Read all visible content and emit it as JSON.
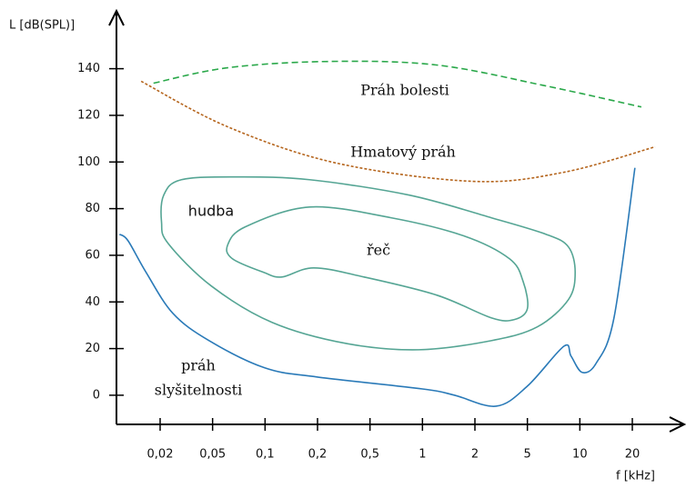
{
  "chart_data": {
    "type": "line",
    "xlabel": "f [kHz]",
    "ylabel": "L [dB(SPL)]",
    "xlim": [
      0.01,
      40
    ],
    "xticks": [
      {
        "value": 0.02,
        "label": "0,02"
      },
      {
        "value": 0.05,
        "label": "0,05"
      },
      {
        "value": 0.1,
        "label": "0,1"
      },
      {
        "value": 0.2,
        "label": "0,2"
      },
      {
        "value": 0.5,
        "label": "0,5"
      },
      1,
      2,
      5,
      10,
      20
    ],
    "ylim": [
      -12.5,
      164
    ],
    "yticks": [
      0,
      20,
      40,
      60,
      80,
      100,
      120,
      140
    ],
    "series": [
      {
        "color": "#2a7ab8",
        "dash": "solid",
        "x": [
          0.0105,
          0.012,
          0.016,
          0.025,
          0.047,
          0.1,
          0.2,
          1,
          1.53,
          2.9,
          5,
          8.1,
          8.9,
          10.3,
          12.4,
          15.7,
          20.9
        ],
        "values": [
          69,
          66.3,
          52.7,
          35.1,
          23.4,
          11.7,
          7.8,
          2.7,
          0,
          -4.7,
          3.9,
          21,
          16.8,
          9.8,
          13.7,
          33.2,
          97.5
        ]
      },
      {
        "color": "#2aa84a",
        "dash": "dashed",
        "x": [
          0.018,
          0.061,
          0.24,
          1.2,
          6.4,
          23.3
        ],
        "values": [
          133.8,
          140.4,
          143.1,
          141.6,
          132.6,
          123.6
        ]
      },
      {
        "color": "#b5651d",
        "dash": "dotted",
        "x": [
          0.0148,
          0.061,
          0.28,
          1.95,
          8.1,
          29.4
        ],
        "values": [
          134.6,
          115.1,
          99.5,
          91.7,
          95.6,
          106.5
        ]
      },
      {
        "color": "#55a594",
        "dash": "solid",
        "x": [
          0.0205,
          0.0213,
          0.029,
          0.069,
          0.18,
          0.84,
          2.66,
          6.4,
          8.6,
          9.4,
          8.6,
          5.7,
          2.66,
          0.95,
          0.33,
          0.11,
          0.049,
          0.023,
          0.0205
        ],
        "values": [
          74.1,
          85.8,
          92.4,
          93.6,
          92.4,
          85.8,
          76.1,
          69,
          63.6,
          52.7,
          41,
          29.3,
          23.4,
          19.5,
          22.2,
          31.2,
          46.8,
          65.1,
          74.1
        ]
      },
      {
        "color": "#55a594",
        "dash": "solid",
        "x": [
          0.061,
          0.077,
          0.18,
          0.66,
          1.73,
          3.66,
          4.64,
          5,
          3.96,
          2.66,
          1.21,
          0.45,
          0.19,
          0.125,
          0.098,
          0.065,
          0.061
        ],
        "values": [
          64.4,
          72.2,
          80.7,
          76.1,
          68.3,
          58.5,
          48.8,
          37.1,
          32.4,
          33.2,
          42.9,
          50.7,
          54.6,
          50.7,
          52.7,
          58.5,
          64.4
        ]
      }
    ],
    "annotations": [
      "Práh bolesti",
      "Hmatový práh",
      "hudba",
      "řeč",
      "práh",
      "slyšitelnosti"
    ]
  }
}
